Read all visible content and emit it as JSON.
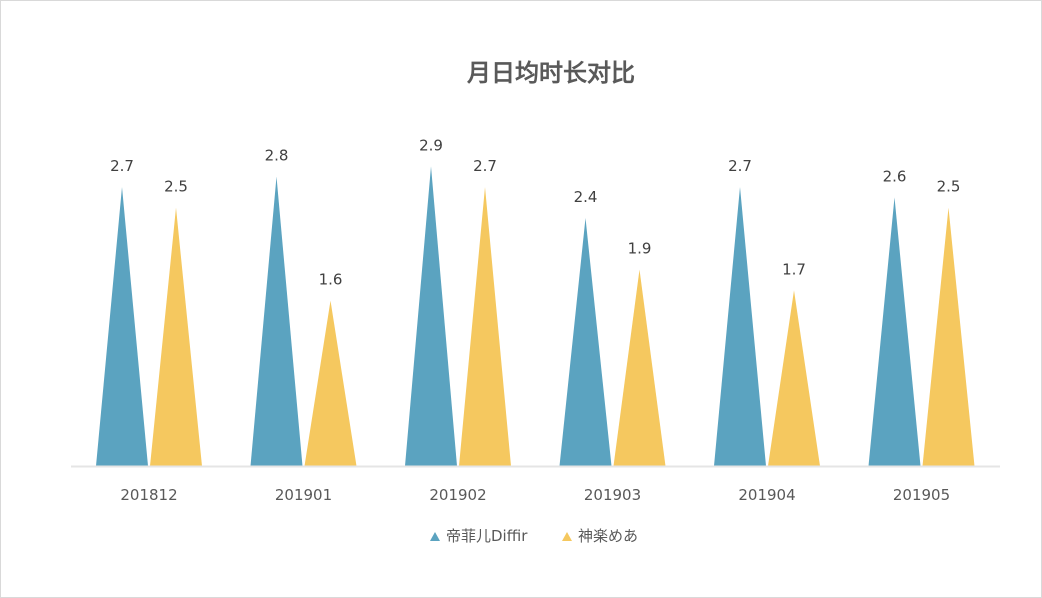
{
  "chart_data": {
    "type": "bar",
    "bar_shape": "triangle",
    "title": "月日均时长对比",
    "xlabel": "",
    "ylabel": "",
    "categories": [
      "201812",
      "201901",
      "201902",
      "201903",
      "201904",
      "201905"
    ],
    "series": [
      {
        "name": "帝菲儿Diffir",
        "color": "#5ba3c0",
        "values": [
          2.7,
          2.8,
          2.9,
          2.4,
          2.7,
          2.6
        ],
        "labels": [
          "2.7",
          "2.8",
          "2.9",
          "2.4",
          "2.7",
          "2.6"
        ]
      },
      {
        "name": "神楽めあ",
        "color": "#f5c85f",
        "values": [
          2.5,
          1.6,
          2.7,
          1.9,
          1.7,
          2.5
        ],
        "labels": [
          "2.5",
          "1.6",
          "2.7",
          "1.9",
          "1.7",
          "2.5"
        ]
      }
    ],
    "ylim": [
      0,
      3
    ],
    "grid": false,
    "legend": "bottom",
    "axis_color": "#e5e5e5"
  }
}
